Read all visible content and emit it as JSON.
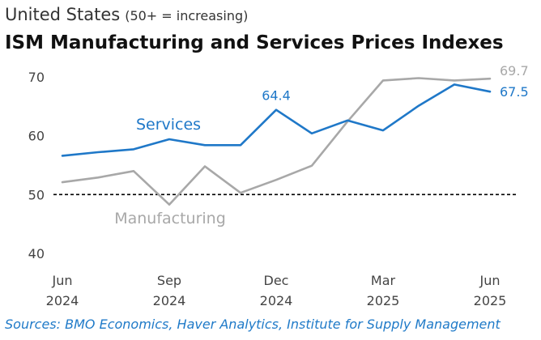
{
  "header": {
    "country": "United States",
    "note": "(50+ = increasing)",
    "title": "ISM Manufacturing and Services Prices Indexes"
  },
  "source": "Sources: BMO Economics, Haver Analytics, Institute for Supply Management",
  "colors": {
    "services": "#1f78c8",
    "manufacturing": "#a8a8a8",
    "reference_line": "#000000",
    "axis_text": "#444444"
  },
  "chart_data": {
    "type": "line",
    "x": [
      "Jun 2024",
      "Jul 2024",
      "Aug 2024",
      "Sep 2024",
      "Oct 2024",
      "Nov 2024",
      "Dec 2024",
      "Jan 2025",
      "Feb 2025",
      "Mar 2025",
      "Apr 2025",
      "May 2025",
      "Jun 2025"
    ],
    "x_tick_labels": [
      {
        "month": "Jun",
        "year": "2024",
        "index": 0
      },
      {
        "month": "Sep",
        "year": "2024",
        "index": 3
      },
      {
        "month": "Dec",
        "year": "2024",
        "index": 6
      },
      {
        "month": "Mar",
        "year": "2025",
        "index": 9
      },
      {
        "month": "Jun",
        "year": "2025",
        "index": 12
      }
    ],
    "ylim": [
      40,
      70
    ],
    "y_ticks": [
      40,
      50,
      60,
      70
    ],
    "reference_line": 50,
    "grid": false,
    "series": [
      {
        "name": "Services",
        "key": "services",
        "values": [
          56.6,
          57.2,
          57.7,
          59.4,
          58.4,
          58.4,
          64.4,
          60.4,
          62.6,
          60.9,
          65.1,
          68.7,
          67.5
        ]
      },
      {
        "name": "Manufacturing",
        "key": "manufacturing",
        "values": [
          52.1,
          52.9,
          54.0,
          48.3,
          54.8,
          50.3,
          52.5,
          54.9,
          62.4,
          69.4,
          69.8,
          69.4,
          69.7
        ]
      }
    ],
    "data_labels": [
      {
        "series": "services",
        "index": 6,
        "text": "64.4"
      },
      {
        "series": "manufacturing",
        "index": 12,
        "text": "69.7"
      },
      {
        "series": "services",
        "index": 12,
        "text": "67.5"
      }
    ]
  }
}
